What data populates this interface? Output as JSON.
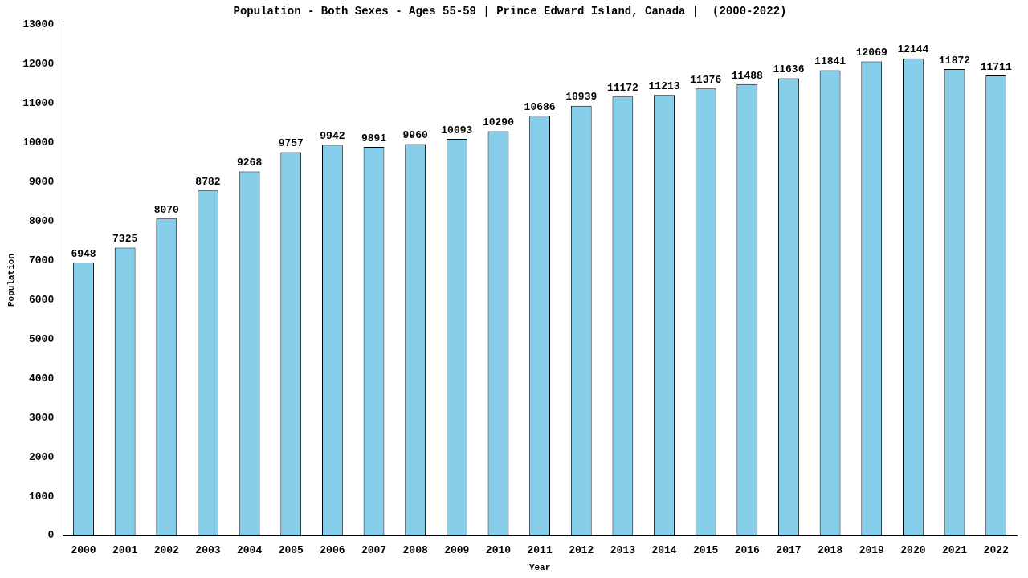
{
  "chart_data": {
    "type": "bar",
    "title": "Population - Both Sexes - Ages 55-59 | Prince Edward Island, Canada |  (2000-2022)",
    "x_label": "Year",
    "y_label": "Population",
    "categories": [
      "2000",
      "2001",
      "2002",
      "2003",
      "2004",
      "2005",
      "2006",
      "2007",
      "2008",
      "2009",
      "2010",
      "2011",
      "2012",
      "2013",
      "2014",
      "2015",
      "2016",
      "2017",
      "2018",
      "2019",
      "2020",
      "2021",
      "2022"
    ],
    "values": [
      6948,
      7325,
      8070,
      8782,
      9268,
      9757,
      9942,
      9891,
      9960,
      10093,
      10290,
      10686,
      10939,
      11172,
      11213,
      11376,
      11488,
      11636,
      11841,
      12069,
      12144,
      11872,
      11711
    ],
    "color": "#87ceeb",
    "ylim": [
      0,
      13000
    ],
    "yticks": [
      0,
      1000,
      2000,
      3000,
      4000,
      5000,
      6000,
      7000,
      8000,
      9000,
      10000,
      11000,
      12000,
      13000
    ],
    "grid": false,
    "data_labels": true
  }
}
